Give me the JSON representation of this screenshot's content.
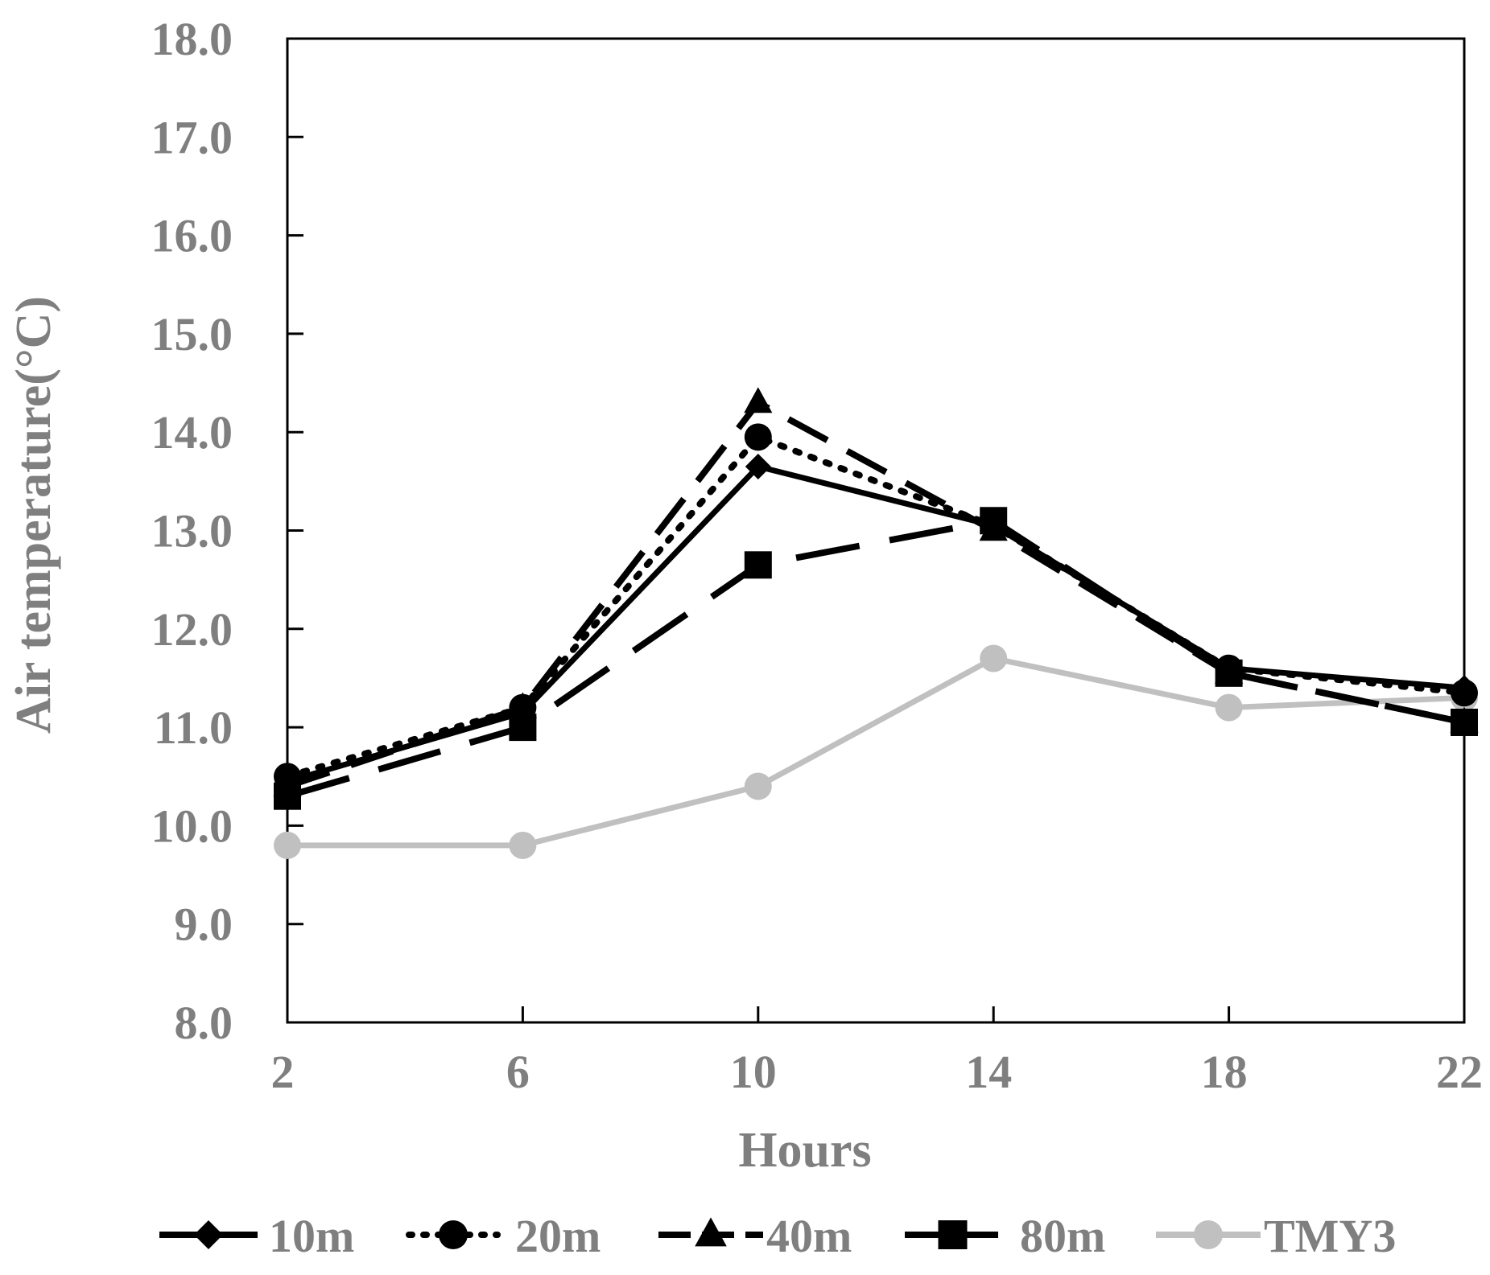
{
  "chart_data": {
    "type": "line",
    "title": "",
    "xlabel": "Hours",
    "ylabel": "Air temperature(°C)",
    "x": [
      2,
      6,
      10,
      14,
      18,
      22
    ],
    "x_tick_labels": [
      "2",
      "6",
      "10",
      "14",
      "18",
      "22"
    ],
    "xlim": [
      2,
      22
    ],
    "y_ticks": [
      8,
      9,
      10,
      11,
      12,
      13,
      14,
      15,
      16,
      17,
      18
    ],
    "y_tick_labels": [
      "8.0",
      "9.0",
      "10.0",
      "11.0",
      "12.0",
      "13.0",
      "14.0",
      "15.0",
      "16.0",
      "17.0",
      "18.0"
    ],
    "ylim": [
      8,
      18
    ],
    "grid": false,
    "legend_position": "bottom",
    "series": [
      {
        "name": "10m",
        "values": [
          10.45,
          11.15,
          13.65,
          13.05,
          11.6,
          11.4
        ],
        "color": "#000000",
        "marker": "diamond",
        "dash": "solid"
      },
      {
        "name": "20m",
        "values": [
          10.5,
          11.2,
          13.95,
          13.05,
          11.6,
          11.35
        ],
        "color": "#000000",
        "marker": "circle",
        "dash": "dotted"
      },
      {
        "name": "40m",
        "values": [
          10.4,
          11.2,
          14.3,
          13.0,
          11.55,
          11.05
        ],
        "color": "#000000",
        "marker": "triangle",
        "dash": "dashed"
      },
      {
        "name": "80m",
        "values": [
          10.3,
          11.0,
          12.65,
          13.1,
          11.55,
          11.05
        ],
        "color": "#000000",
        "marker": "square",
        "dash": "long-dashed"
      },
      {
        "name": "TMY3",
        "values": [
          9.8,
          9.8,
          10.4,
          11.7,
          11.2,
          11.3
        ],
        "color": "#c0c0c0",
        "marker": "circle",
        "dash": "solid"
      }
    ]
  }
}
